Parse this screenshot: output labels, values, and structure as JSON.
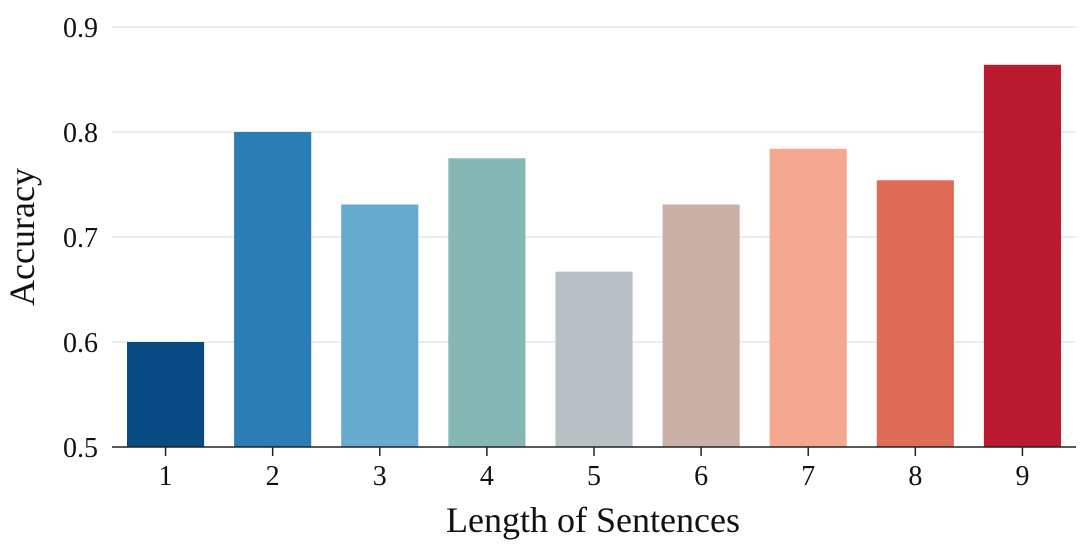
{
  "chart_data": {
    "type": "bar",
    "categories": [
      "1",
      "2",
      "3",
      "4",
      "5",
      "6",
      "7",
      "8",
      "9"
    ],
    "values": [
      0.6,
      0.8,
      0.731,
      0.775,
      0.667,
      0.731,
      0.784,
      0.754,
      0.864
    ],
    "colors": [
      "#084a82",
      "#2a7db5",
      "#68abd0",
      "#85b7b5",
      "#b9c0c3",
      "#cbb1a5",
      "#f5a891",
      "#df6c57",
      "#ba1a2f"
    ],
    "title": "",
    "xlabel": "Length of Sentences",
    "ylabel": "Accuracy",
    "ylim": [
      0.5,
      0.9
    ],
    "yticks": [
      "0.5",
      "0.6",
      "0.7",
      "0.8",
      "0.9"
    ],
    "grid": true,
    "legend": "none"
  }
}
